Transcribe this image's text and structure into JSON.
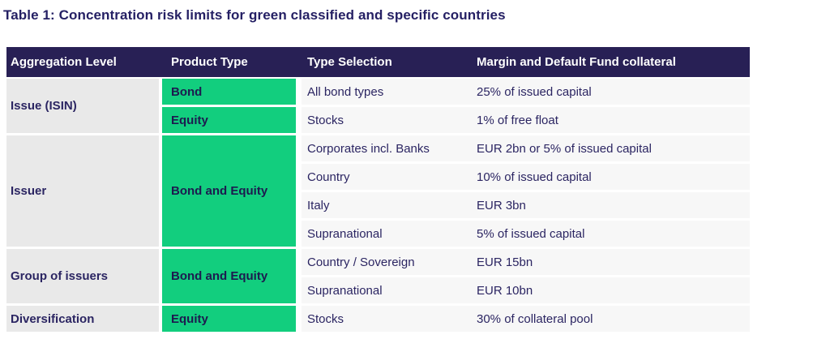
{
  "title": "Table 1: Concentration risk limits for green classified and specific countries",
  "colors": {
    "header_bg": "#282055",
    "green": "#12CE7E",
    "text_navy": "#2B2562",
    "level_cell_bg": "#E9E9E9",
    "row_bg": "#F7F7F7"
  },
  "table": {
    "headers": [
      "Aggregation Level",
      "Product Type",
      "Type Selection",
      "Margin and Default Fund collateral"
    ],
    "sections": [
      {
        "aggregation_level": "Issue (ISIN)",
        "product_types": [
          {
            "label": "Bond",
            "span": 1
          },
          {
            "label": "Equity",
            "span": 1
          }
        ],
        "rows": [
          {
            "type_selection": "All bond types",
            "margin": "25% of issued capital"
          },
          {
            "type_selection": "Stocks",
            "margin": "1% of free float"
          }
        ]
      },
      {
        "aggregation_level": "Issuer",
        "product_types": [
          {
            "label": "Bond and Equity",
            "span": 4
          }
        ],
        "rows": [
          {
            "type_selection": "Corporates incl. Banks",
            "margin": "EUR 2bn or 5% of issued capital"
          },
          {
            "type_selection": "Country",
            "margin": "10% of issued capital"
          },
          {
            "type_selection": "Italy",
            "margin": "EUR 3bn"
          },
          {
            "type_selection": "Supranational",
            "margin": "5% of issued capital"
          }
        ]
      },
      {
        "aggregation_level": "Group of issuers",
        "product_types": [
          {
            "label": "Bond and Equity",
            "span": 2
          }
        ],
        "rows": [
          {
            "type_selection": "Country / Sovereign",
            "margin": "EUR 15bn"
          },
          {
            "type_selection": "Supranational",
            "margin": "EUR 10bn"
          }
        ]
      },
      {
        "aggregation_level": "Diversification",
        "product_types": [
          {
            "label": "Equity",
            "span": 1
          }
        ],
        "rows": [
          {
            "type_selection": "Stocks",
            "margin": "30% of collateral pool"
          }
        ]
      }
    ]
  }
}
